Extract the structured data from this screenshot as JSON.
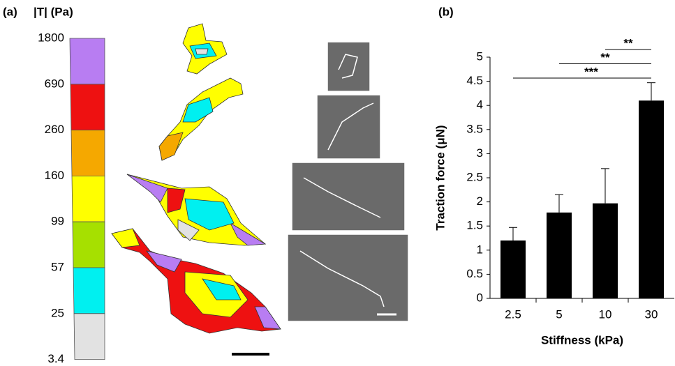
{
  "panel_a": {
    "label": "(a)",
    "scale_title": "|T| (Pa)",
    "scale_ticks": [
      1800,
      690,
      260,
      160,
      99,
      57,
      25,
      3.4
    ],
    "scale_colors": [
      "#b87df2",
      "#ee1111",
      "#f5a800",
      "#ffff00",
      "#a6e000",
      "#00f0f0",
      "#e2e2e2"
    ]
  },
  "chart_data": {
    "type": "bar",
    "panel_label": "(b)",
    "categories": [
      "2.5",
      "5",
      "10",
      "30"
    ],
    "values": [
      1.2,
      1.78,
      1.97,
      4.1
    ],
    "errors": [
      0.27,
      0.37,
      0.72,
      0.37
    ],
    "color": "#000000",
    "xlabel": "Stiffness (kPa)",
    "ylabel": "Traction force (μN)",
    "ylim": [
      0,
      5
    ],
    "yticks": [
      0,
      0.5,
      1,
      1.5,
      2,
      2.5,
      3,
      3.5,
      4,
      4.5,
      5
    ],
    "significance": [
      {
        "label": "***",
        "pair": [
          0,
          3
        ]
      },
      {
        "label": "**",
        "pair": [
          1,
          3
        ]
      },
      {
        "label": "**",
        "pair": [
          2,
          3
        ]
      }
    ]
  }
}
